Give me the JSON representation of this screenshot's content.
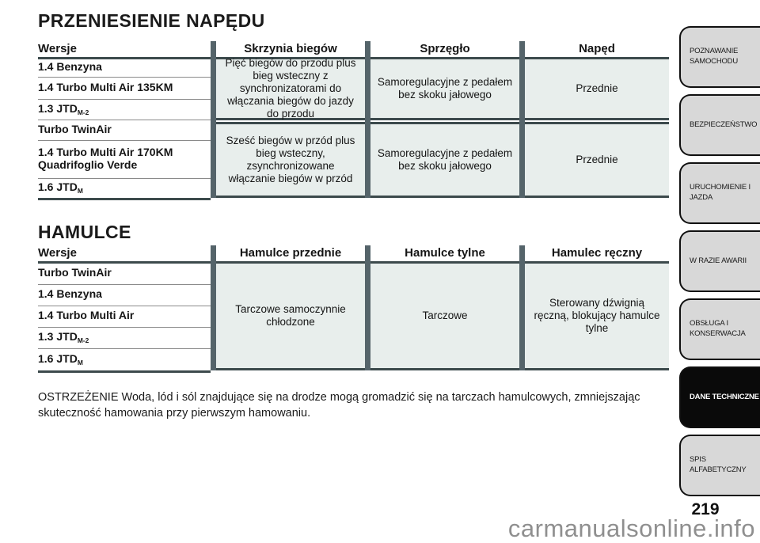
{
  "drive": {
    "title": "PRZENIESIENIE NAPĘDU",
    "headers": {
      "versions": "Wersje",
      "gearbox": "Skrzynia biegów",
      "clutch": "Sprzęgło",
      "drive": "Napęd"
    },
    "groups": [
      {
        "versions": [
          {
            "label": "1.4 Benzyna",
            "sub": ""
          },
          {
            "label": "1.4 Turbo Multi Air 135KM",
            "sub": ""
          },
          {
            "label": "1.3 JTD",
            "sub": "M-2"
          }
        ],
        "gearbox": "Pięć biegów do przodu plus bieg wsteczny z synchronizatorami do włączania biegów do jazdy do przodu",
        "clutch": "Samoregulacyjne z pedałem bez skoku jałowego",
        "drive": "Przednie"
      },
      {
        "versions": [
          {
            "label": "Turbo TwinAir",
            "sub": ""
          },
          {
            "label": "1.4 Turbo Multi Air 170KM Quadrifoglio Verde",
            "sub": ""
          },
          {
            "label": "1.6 JTD",
            "sub": "M"
          }
        ],
        "gearbox": "Sześć biegów w przód plus bieg wsteczny, zsynchronizowane włączanie biegów w przód",
        "clutch": "Samoregulacyjne z pedałem bez skoku jałowego",
        "drive": "Przednie"
      }
    ]
  },
  "brakes": {
    "title": "HAMULCE",
    "headers": {
      "versions": "Wersje",
      "front": "Hamulce przednie",
      "rear": "Hamulce tylne",
      "hand": "Hamulec ręczny"
    },
    "versions": [
      {
        "label": "Turbo TwinAir",
        "sub": ""
      },
      {
        "label": "1.4 Benzyna",
        "sub": ""
      },
      {
        "label": "1.4 Turbo Multi Air",
        "sub": ""
      },
      {
        "label": "1.3 JTD",
        "sub": "M-2"
      },
      {
        "label": "1.6 JTD",
        "sub": "M"
      }
    ],
    "front": "Tarczowe samoczynnie chłodzone",
    "rear": "Tarczowe",
    "hand": "Sterowany dźwignią ręczną, blokujący hamulce tylne"
  },
  "warning": "OSTRZEŻENIE Woda, lód i sól znajdujące się na drodze mogą gromadzić się na tarczach hamulcowych, zmniejszając skuteczność hamowania przy pierwszym hamowaniu.",
  "sidebar": {
    "items": [
      {
        "label": "POZNAWANIE SAMOCHODU",
        "active": false
      },
      {
        "label": "BEZPIECZEŃSTWO",
        "active": false
      },
      {
        "label": "URUCHOMIENIE I JAZDA",
        "active": false
      },
      {
        "label": "W RAZIE AWARII",
        "active": false
      },
      {
        "label": "OBSŁUGA I KONSERWACJA",
        "active": false
      },
      {
        "label": "DANE TECHNICZNE",
        "active": true
      },
      {
        "label": "SPIS ALFABETYCZNY",
        "active": false
      }
    ]
  },
  "page_number": "219",
  "watermark": "carmanualsonline.info",
  "colors": {
    "cell_bg": "#e8eeec",
    "column_separator": "#55646a",
    "rule_dark": "#3c4a4c",
    "rule_light": "#8a8a8a",
    "tab_bg": "#d8d8d8",
    "tab_active_bg": "#0a0a0a",
    "watermark_gray": "#8f8f8f"
  }
}
